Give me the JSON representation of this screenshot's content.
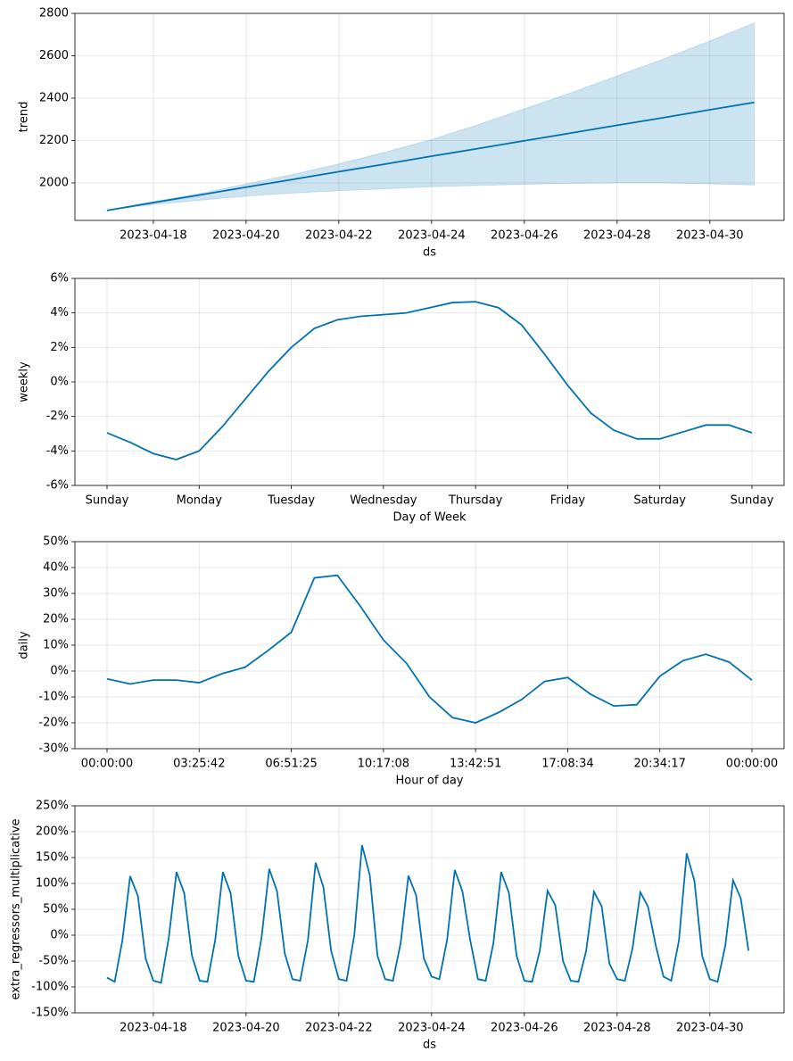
{
  "chart_data": [
    {
      "type": "line",
      "ylabel": "trend",
      "xlabel": "ds",
      "color": "#0072B2",
      "band_color": "#0072B2",
      "grid": true,
      "x": [
        "2023-04-17",
        "2023-04-18",
        "2023-04-19",
        "2023-04-20",
        "2023-04-21",
        "2023-04-22",
        "2023-04-23",
        "2023-04-24",
        "2023-04-25",
        "2023-04-26",
        "2023-04-27",
        "2023-04-28",
        "2023-04-29",
        "2023-04-30",
        "2023-04-30 23:00"
      ],
      "values": [
        1870,
        1907,
        1943,
        1980,
        2016,
        2053,
        2089,
        2126,
        2162,
        2199,
        2235,
        2272,
        2308,
        2345,
        2380
      ],
      "upper": [
        1870,
        1912,
        1950,
        1995,
        2040,
        2090,
        2145,
        2205,
        2275,
        2350,
        2425,
        2505,
        2585,
        2670,
        2755
      ],
      "lower": [
        1870,
        1898,
        1918,
        1938,
        1952,
        1963,
        1972,
        1982,
        1988,
        1993,
        1998,
        2000,
        2000,
        1995,
        1990
      ],
      "xlim": [
        "2023-04-16 07:26",
        "2023-05-01 14:24"
      ],
      "xticks": [
        "2023-04-18",
        "2023-04-20",
        "2023-04-22",
        "2023-04-24",
        "2023-04-26",
        "2023-04-28",
        "2023-04-30"
      ],
      "ylim": [
        1823,
        2800
      ],
      "yticks": [
        2000,
        2200,
        2400,
        2600,
        2800
      ]
    },
    {
      "type": "line",
      "ylabel": "weekly",
      "xlabel": "Day of Week",
      "color": "#0072B2",
      "grid": true,
      "categories": [
        "Sunday",
        null,
        null,
        null,
        "Monday",
        null,
        null,
        null,
        "Tuesday",
        null,
        null,
        null,
        "Wednesday",
        null,
        null,
        null,
        "Thursday",
        null,
        null,
        null,
        "Friday",
        null,
        null,
        null,
        "Saturday",
        null,
        null,
        null,
        "Sunday"
      ],
      "values": [
        -2.95,
        -3.5,
        -4.15,
        -4.5,
        -4.0,
        -2.6,
        -1.0,
        0.6,
        2.0,
        3.1,
        3.6,
        3.8,
        3.9,
        4.0,
        4.3,
        4.6,
        4.65,
        4.3,
        3.3,
        1.6,
        -0.2,
        -1.8,
        -2.8,
        -3.3,
        -3.3,
        -2.9,
        -2.5,
        -2.5,
        -2.95
      ],
      "ylim": [
        -6,
        6
      ],
      "yticks": [
        {
          "value": -6,
          "label": "-6%"
        },
        {
          "value": -4,
          "label": "-4%"
        },
        {
          "value": -2,
          "label": "-2%"
        },
        {
          "value": 0,
          "label": "0%"
        },
        {
          "value": 2,
          "label": "2%"
        },
        {
          "value": 4,
          "label": "4%"
        },
        {
          "value": 6,
          "label": "6%"
        }
      ]
    },
    {
      "type": "line",
      "ylabel": "daily",
      "xlabel": "Hour of day",
      "color": "#0072B2",
      "grid": true,
      "categories": [
        "00:00:00",
        null,
        null,
        null,
        "03:25:42",
        null,
        null,
        null,
        "06:51:25",
        null,
        null,
        null,
        "10:17:08",
        null,
        null,
        null,
        "13:42:51",
        null,
        null,
        null,
        "17:08:34",
        null,
        null,
        null,
        "20:34:17",
        null,
        null,
        null,
        "00:00:00"
      ],
      "values": [
        -3,
        -5,
        -3.5,
        -3.5,
        -4.5,
        -1,
        1.5,
        8,
        15,
        36,
        37,
        25,
        12,
        3,
        -10,
        -18,
        -20,
        -16,
        -11,
        -4,
        -2.5,
        -9,
        -13.5,
        -13,
        -2,
        4,
        6.5,
        3.5,
        -3.5
      ],
      "ylim": [
        -30,
        50
      ],
      "yticks": [
        {
          "value": -30,
          "label": "-30%"
        },
        {
          "value": -20,
          "label": "-20%"
        },
        {
          "value": -10,
          "label": "-10%"
        },
        {
          "value": 0,
          "label": "0%"
        },
        {
          "value": 10,
          "label": "10%"
        },
        {
          "value": 20,
          "label": "20%"
        },
        {
          "value": 30,
          "label": "30%"
        },
        {
          "value": 40,
          "label": "40%"
        },
        {
          "value": 50,
          "label": "50%"
        }
      ]
    },
    {
      "type": "line",
      "ylabel": "extra_regressors_multiplicative",
      "xlabel": "ds",
      "color": "#0072B2",
      "grid": true,
      "x": [
        "2023-04-17 00:00",
        "2023-04-17 04:00",
        "2023-04-17 08:00",
        "2023-04-17 12:00",
        "2023-04-17 16:00",
        "2023-04-17 20:00",
        "2023-04-18 00:00",
        "2023-04-18 04:00",
        "2023-04-18 08:00",
        "2023-04-18 12:00",
        "2023-04-18 16:00",
        "2023-04-18 20:00",
        "2023-04-19 00:00",
        "2023-04-19 04:00",
        "2023-04-19 08:00",
        "2023-04-19 12:00",
        "2023-04-19 16:00",
        "2023-04-19 20:00",
        "2023-04-20 00:00",
        "2023-04-20 04:00",
        "2023-04-20 08:00",
        "2023-04-20 12:00",
        "2023-04-20 16:00",
        "2023-04-20 20:00",
        "2023-04-21 00:00",
        "2023-04-21 04:00",
        "2023-04-21 08:00",
        "2023-04-21 12:00",
        "2023-04-21 16:00",
        "2023-04-21 20:00",
        "2023-04-22 00:00",
        "2023-04-22 04:00",
        "2023-04-22 08:00",
        "2023-04-22 12:00",
        "2023-04-22 16:00",
        "2023-04-22 20:00",
        "2023-04-23 00:00",
        "2023-04-23 04:00",
        "2023-04-23 08:00",
        "2023-04-23 12:00",
        "2023-04-23 16:00",
        "2023-04-23 20:00",
        "2023-04-24 00:00",
        "2023-04-24 04:00",
        "2023-04-24 08:00",
        "2023-04-24 12:00",
        "2023-04-24 16:00",
        "2023-04-24 20:00",
        "2023-04-25 00:00",
        "2023-04-25 04:00",
        "2023-04-25 08:00",
        "2023-04-25 12:00",
        "2023-04-25 16:00",
        "2023-04-25 20:00",
        "2023-04-26 00:00",
        "2023-04-26 04:00",
        "2023-04-26 08:00",
        "2023-04-26 12:00",
        "2023-04-26 16:00",
        "2023-04-26 20:00",
        "2023-04-27 00:00",
        "2023-04-27 04:00",
        "2023-04-27 08:00",
        "2023-04-27 12:00",
        "2023-04-27 16:00",
        "2023-04-27 20:00",
        "2023-04-28 00:00",
        "2023-04-28 04:00",
        "2023-04-28 08:00",
        "2023-04-28 12:00",
        "2023-04-28 16:00",
        "2023-04-28 20:00",
        "2023-04-29 00:00",
        "2023-04-29 04:00",
        "2023-04-29 08:00",
        "2023-04-29 12:00",
        "2023-04-29 16:00",
        "2023-04-29 20:00",
        "2023-04-30 00:00",
        "2023-04-30 04:00",
        "2023-04-30 08:00",
        "2023-04-30 12:00",
        "2023-04-30 16:00",
        "2023-04-30 20:00"
      ],
      "values": [
        -82,
        -90,
        -10,
        114,
        76,
        -45,
        -88,
        -92,
        -5,
        122,
        81,
        -40,
        -88,
        -90,
        -10,
        122,
        81,
        -40,
        -88,
        -90,
        -5,
        128,
        85,
        -35,
        -85,
        -88,
        -10,
        140,
        93,
        -30,
        -85,
        -88,
        0,
        174,
        116,
        -40,
        -85,
        -88,
        -15,
        115,
        77,
        -45,
        -80,
        -85,
        -10,
        126,
        84,
        -10,
        -85,
        -88,
        -15,
        122,
        82,
        -40,
        -88,
        -90,
        -30,
        86,
        58,
        -50,
        -88,
        -90,
        -30,
        84,
        56,
        -55,
        -85,
        -88,
        -25,
        83,
        55,
        -20,
        -80,
        -88,
        -10,
        158,
        105,
        -40,
        -85,
        -90,
        -20,
        106,
        71,
        -30
      ],
      "xlim": [
        "2023-04-16 07:26",
        "2023-05-01 14:24"
      ],
      "xticks": [
        "2023-04-18",
        "2023-04-20",
        "2023-04-22",
        "2023-04-24",
        "2023-04-26",
        "2023-04-28",
        "2023-04-30"
      ],
      "ylim": [
        -150,
        250
      ],
      "yticks": [
        {
          "value": -150,
          "label": "-150%"
        },
        {
          "value": -100,
          "label": "-100%"
        },
        {
          "value": -50,
          "label": "-50%"
        },
        {
          "value": 0,
          "label": "0%"
        },
        {
          "value": 50,
          "label": "50%"
        },
        {
          "value": 100,
          "label": "100%"
        },
        {
          "value": 150,
          "label": "150%"
        },
        {
          "value": 200,
          "label": "200%"
        },
        {
          "value": 250,
          "label": "250%"
        }
      ]
    }
  ]
}
